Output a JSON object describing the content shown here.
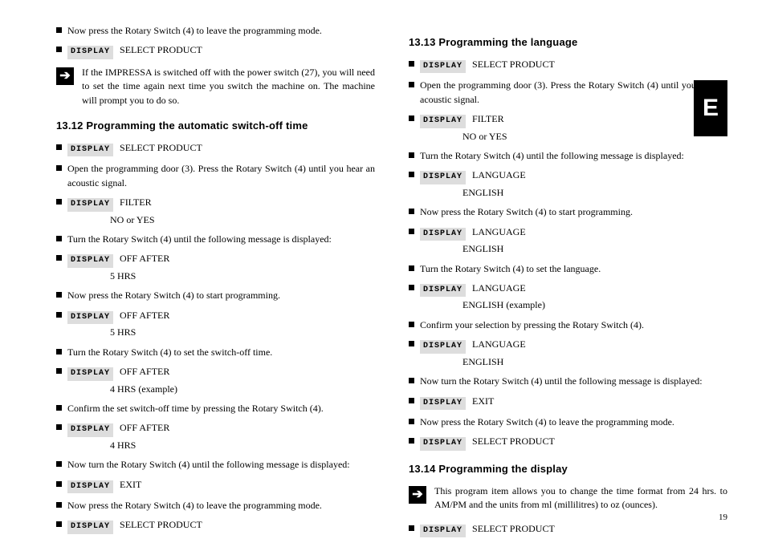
{
  "colors": {
    "bg": "#ffffff",
    "text": "#000000",
    "disp_bg": "#dddddd",
    "tab_bg": "#000000",
    "tab_fg": "#ffffff"
  },
  "typography": {
    "body_family": "Georgia, Times New Roman, serif",
    "body_size": 12,
    "heading_family": "Arial, sans-serif",
    "heading_size": 13,
    "disp_family": "Courier New, monospace",
    "disp_size": 10
  },
  "disp_label": "DISPLAY",
  "side_tab": "E",
  "page_number": "19",
  "note_arrow": "➔",
  "left": {
    "pre": [
      {
        "t": "text",
        "v": "Now press the Rotary Switch (4) to leave the programming mode."
      },
      {
        "t": "disp",
        "v": "SELECT PRODUCT"
      }
    ],
    "note": "If the IMPRESSA is switched off with the power switch (27), you will need to set the time again next time you switch the machine on. The machine will prompt you to do so.",
    "h12": "13.12 Programming the automatic switch-off time",
    "s12": [
      {
        "t": "disp",
        "v": "SELECT PRODUCT"
      },
      {
        "t": "text",
        "v": "Open the programming door (3). Press the Rotary Switch (4) until you hear an acoustic signal."
      },
      {
        "t": "disp",
        "v": "FILTER",
        "sub": "NO or YES"
      },
      {
        "t": "text",
        "v": "Turn the Rotary Switch (4) until the following message is displayed:"
      },
      {
        "t": "disp",
        "v": "OFF AFTER",
        "sub": "5 HRS"
      },
      {
        "t": "text",
        "v": "Now press the Rotary Switch (4) to start programming."
      },
      {
        "t": "disp",
        "v": "OFF AFTER",
        "sub": "5 HRS"
      },
      {
        "t": "text",
        "v": "Turn the Rotary Switch (4) to set the switch-off time."
      },
      {
        "t": "disp",
        "v": "OFF AFTER",
        "sub": "4 HRS (example)"
      },
      {
        "t": "text",
        "v": "Confirm the set switch-off time by pressing the Rotary Switch (4)."
      },
      {
        "t": "disp",
        "v": "OFF AFTER",
        "sub": "4 HRS"
      },
      {
        "t": "text",
        "v": "Now turn the Rotary Switch (4) until the following message is displayed:"
      },
      {
        "t": "disp",
        "v": "EXIT"
      },
      {
        "t": "text",
        "v": "Now press the Rotary Switch (4) to leave the programming mode."
      },
      {
        "t": "disp",
        "v": "SELECT PRODUCT"
      }
    ]
  },
  "right": {
    "h13": "13.13 Programming the language",
    "s13": [
      {
        "t": "disp",
        "v": "SELECT PRODUCT"
      },
      {
        "t": "text",
        "v": "Open the programming door (3). Press the Rotary Switch (4) until you hear an acoustic signal."
      },
      {
        "t": "disp",
        "v": "FILTER",
        "sub": "NO or YES"
      },
      {
        "t": "text",
        "v": "Turn the Rotary Switch (4) until the following message is displayed:"
      },
      {
        "t": "disp",
        "v": "LANGUAGE",
        "sub": "ENGLISH"
      },
      {
        "t": "text",
        "v": "Now press the Rotary Switch (4) to start programming."
      },
      {
        "t": "disp",
        "v": "LANGUAGE",
        "sub": "ENGLISH"
      },
      {
        "t": "text",
        "v": "Turn the Rotary Switch (4) to set the language."
      },
      {
        "t": "disp",
        "v": "LANGUAGE",
        "sub": "ENGLISH (example)"
      },
      {
        "t": "text",
        "v": "Confirm your selection by pressing the Rotary Switch (4)."
      },
      {
        "t": "disp",
        "v": "LANGUAGE",
        "sub": "ENGLISH"
      },
      {
        "t": "text",
        "v": "Now turn the Rotary Switch (4) until the following message is displayed:"
      },
      {
        "t": "disp",
        "v": "EXIT"
      },
      {
        "t": "text",
        "v": "Now press the Rotary Switch (4) to leave the programming mode."
      },
      {
        "t": "disp",
        "v": "SELECT PRODUCT"
      }
    ],
    "h14": "13.14 Programming the display",
    "note14": "This program item allows you to change the time format from 24 hrs. to AM/PM and the units from ml (millilitres) to oz (ounces).",
    "s14": [
      {
        "t": "disp",
        "v": "SELECT PRODUCT"
      }
    ]
  }
}
